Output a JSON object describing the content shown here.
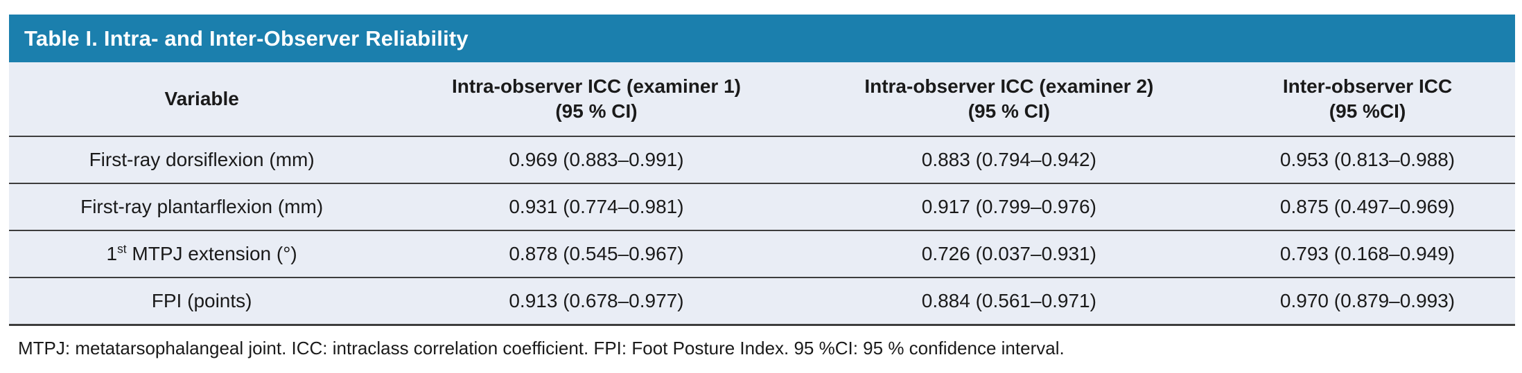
{
  "colors": {
    "accent": "#1b7fad",
    "panel": "#e9edf5",
    "line": "#3d3d3d",
    "text": "#1a1a1a"
  },
  "table": {
    "title": "Table I. Intra- and Inter-Observer Reliability",
    "headers": [
      "Variable",
      "Intra-observer ICC (examiner 1)\n(95 % CI)",
      "Intra-observer ICC (examiner 2)\n(95 % CI)",
      "Inter-observer ICC\n(95 %CI)"
    ],
    "rows": [
      {
        "variable_pre": "First-ray dorsiflexion (mm)",
        "variable_sup": "",
        "variable_post": "",
        "examiner1": "0.969 (0.883–0.991)",
        "examiner2": "0.883 (0.794–0.942)",
        "inter": "0.953 (0.813–0.988)"
      },
      {
        "variable_pre": "First-ray plantarflexion (mm)",
        "variable_sup": "",
        "variable_post": "",
        "examiner1": "0.931 (0.774–0.981)",
        "examiner2": "0.917 (0.799–0.976)",
        "inter": "0.875 (0.497–0.969)"
      },
      {
        "variable_pre": "1",
        "variable_sup": "st",
        "variable_post": " MTPJ extension (°)",
        "examiner1": "0.878 (0.545–0.967)",
        "examiner2": "0.726 (0.037–0.931)",
        "inter": "0.793 (0.168–0.949)"
      },
      {
        "variable_pre": "FPI (points)",
        "variable_sup": "",
        "variable_post": "",
        "examiner1": "0.913 (0.678–0.977)",
        "examiner2": "0.884 (0.561–0.971)",
        "inter": "0.970 (0.879–0.993)"
      }
    ],
    "footnote": "MTPJ: metatarsophalangeal joint. ICC: intraclass correlation coefficient. FPI: Foot Posture Index. 95 %CI: 95 % confidence interval."
  }
}
